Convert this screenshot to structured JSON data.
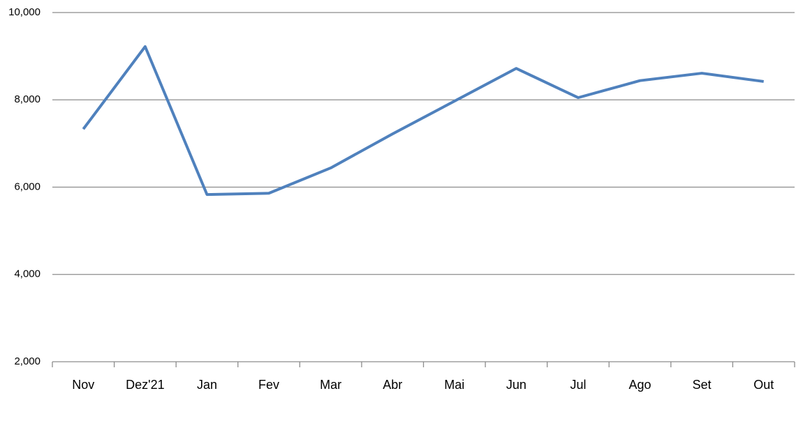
{
  "chart_data": {
    "type": "line",
    "categories": [
      "Nov",
      "Dez'21",
      "Jan",
      "Fev",
      "Mar",
      "Abr",
      "Mai",
      "Jun",
      "Jul",
      "Ago",
      "Set",
      "Out"
    ],
    "series": [
      {
        "color": "#4f81bd",
        "values": [
          7330,
          9220,
          5830,
          5860,
          6440,
          7220,
          7970,
          8720,
          8050,
          8440,
          8610,
          8420
        ]
      }
    ],
    "ylim": [
      2000,
      10000
    ],
    "yticks": [
      {
        "value": 2000,
        "label": "2,000"
      },
      {
        "value": 4000,
        "label": "4,000"
      },
      {
        "value": 6000,
        "label": "6,000"
      },
      {
        "value": 8000,
        "label": "8,000"
      },
      {
        "value": 10000,
        "label": "10,000"
      }
    ],
    "grid": true
  }
}
